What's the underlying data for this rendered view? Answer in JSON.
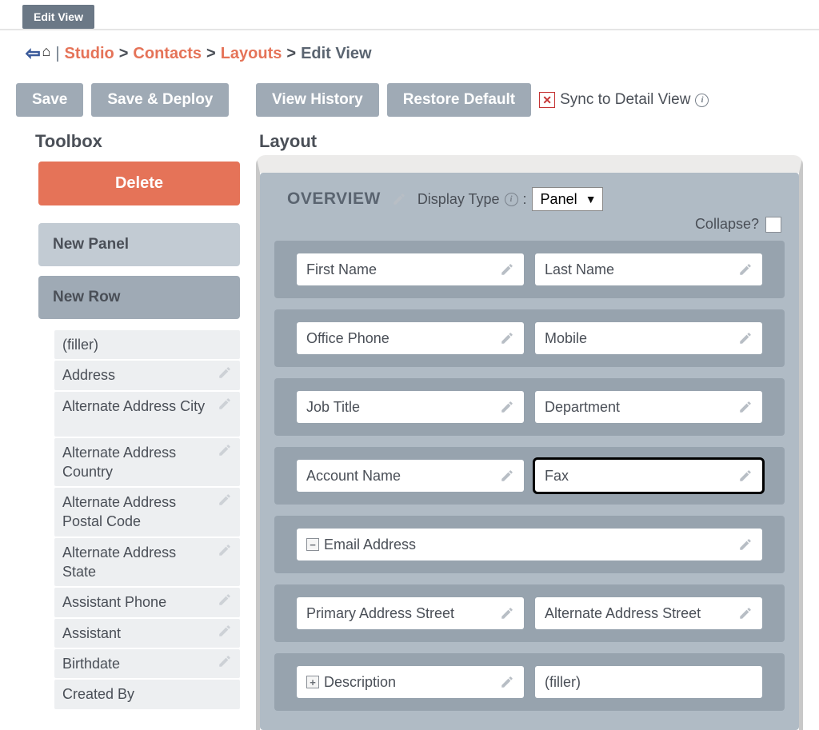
{
  "tab": {
    "label": "Edit View"
  },
  "breadcrumb": {
    "studio": "Studio",
    "module": "Contacts",
    "section": "Layouts",
    "current": "Edit View"
  },
  "buttons": {
    "save": "Save",
    "save_deploy": "Save & Deploy",
    "view_history": "View History",
    "restore_default": "Restore Default",
    "sync_label": "Sync to Detail View"
  },
  "toolbox": {
    "title": "Toolbox",
    "delete": "Delete",
    "new_panel": "New Panel",
    "new_row": "New Row",
    "fields": [
      {
        "label": "(filler)",
        "editable": false
      },
      {
        "label": "Address",
        "editable": true
      },
      {
        "label": "Alternate Address City",
        "editable": true,
        "two_line": true
      },
      {
        "label": "Alternate Address Country",
        "editable": true,
        "two_line": true
      },
      {
        "label": "Alternate Address Postal Code",
        "editable": true,
        "two_line": true
      },
      {
        "label": "Alternate Address State",
        "editable": true,
        "two_line": true
      },
      {
        "label": "Assistant Phone",
        "editable": true
      },
      {
        "label": "Assistant",
        "editable": true
      },
      {
        "label": "Birthdate",
        "editable": true
      },
      {
        "label": "Created By",
        "editable": false
      }
    ]
  },
  "layout": {
    "title": "Layout",
    "panel": {
      "name": "OVERVIEW",
      "display_type_label": "Display Type",
      "display_type_value": "Panel",
      "collapse_label": "Collapse?",
      "rows": [
        {
          "cells": [
            {
              "label": "First Name"
            },
            {
              "label": "Last Name"
            }
          ]
        },
        {
          "cells": [
            {
              "label": "Office Phone"
            },
            {
              "label": "Mobile"
            }
          ]
        },
        {
          "cells": [
            {
              "label": "Job Title"
            },
            {
              "label": "Department"
            }
          ]
        },
        {
          "cells": [
            {
              "label": "Account Name"
            },
            {
              "label": "Fax",
              "highlighted": true
            }
          ]
        },
        {
          "cells": [
            {
              "label": "Email Address",
              "full": true,
              "expander": "−"
            }
          ]
        },
        {
          "cells": [
            {
              "label": "Primary Address Street"
            },
            {
              "label": "Alternate Address Street"
            }
          ]
        },
        {
          "cells": [
            {
              "label": "Description",
              "expander": "+"
            },
            {
              "label": "(filler)",
              "filler": true
            }
          ]
        }
      ]
    }
  },
  "colors": {
    "btn_bg": "#9faab5",
    "delete_bg": "#e57358",
    "panel_bg": "#b0bbc5",
    "row_bg": "#97a3ae",
    "link": "#e57358"
  }
}
